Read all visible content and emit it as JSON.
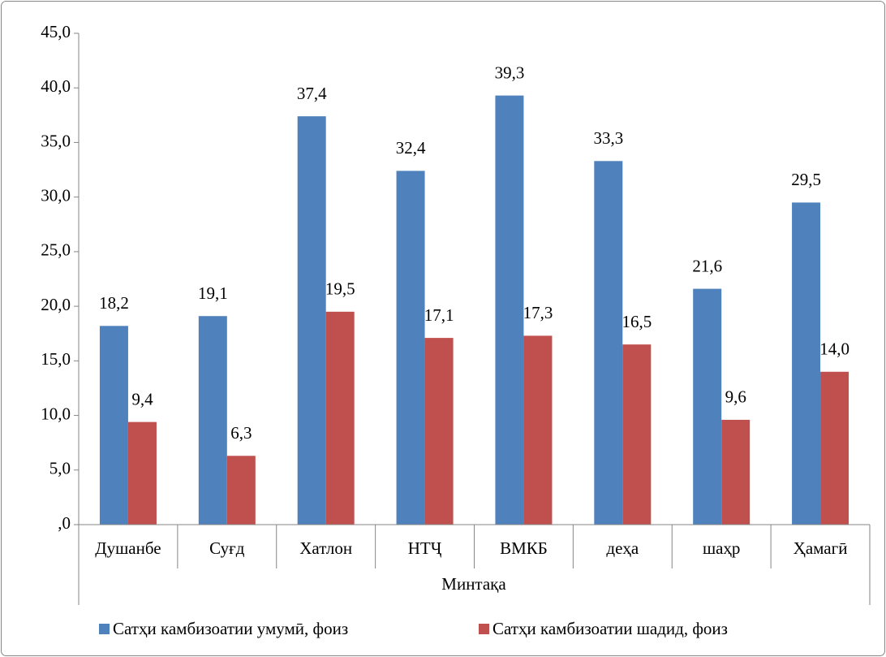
{
  "chart_data": {
    "type": "bar",
    "x_label": "Минтақа",
    "categories": [
      "Душанбе",
      "Суғд",
      "Хатлон",
      "НТҶ",
      "ВМКБ",
      "деҳа",
      "шаҳр",
      "Ҳамагӣ"
    ],
    "series": [
      {
        "name": "Сатҳи камбизоатии умумӣ, фоиз",
        "color": "#4f81bd",
        "values": [
          18.2,
          19.1,
          37.4,
          32.4,
          39.3,
          33.3,
          21.6,
          29.5
        ],
        "value_labels": [
          "18,2",
          "19,1",
          "37,4",
          "32,4",
          "39,3",
          "33,3",
          "21,6",
          "29,5"
        ]
      },
      {
        "name": "Сатҳи камбизоатии шадид, фоиз",
        "color": "#c0504d",
        "values": [
          9.4,
          6.3,
          19.5,
          17.1,
          17.3,
          16.5,
          9.6,
          14.0
        ],
        "value_labels": [
          "9,4",
          "6,3",
          "19,5",
          "17,1",
          "17,3",
          "16,5",
          "9,6",
          "14,0"
        ]
      }
    ],
    "ylim": [
      0,
      45
    ],
    "yticks": [
      {
        "value": 0,
        "label": ",0"
      },
      {
        "value": 5,
        "label": "5,0"
      },
      {
        "value": 10,
        "label": "10,0"
      },
      {
        "value": 15,
        "label": "15,0"
      },
      {
        "value": 20,
        "label": "20,0"
      },
      {
        "value": 25,
        "label": "25,0"
      },
      {
        "value": 30,
        "label": "30,0"
      },
      {
        "value": 35,
        "label": "35,0"
      },
      {
        "value": 40,
        "label": "40,0"
      },
      {
        "value": 45,
        "label": "45,0"
      }
    ],
    "legend": "bottom",
    "grid": false
  }
}
